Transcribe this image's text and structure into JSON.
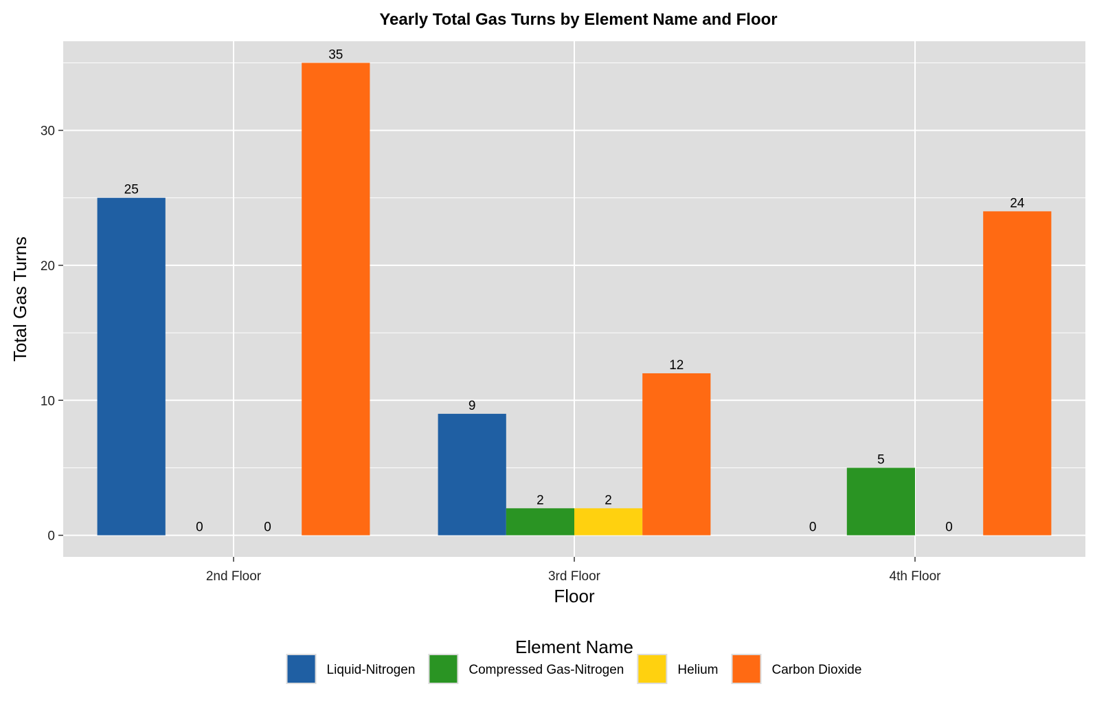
{
  "chart_data": {
    "type": "bar",
    "title": "Yearly Total Gas Turns by Element Name and Floor",
    "xlabel": "Floor",
    "ylabel": "Total Gas Turns",
    "categories": [
      "2nd Floor",
      "3rd Floor",
      "4th Floor"
    ],
    "series": [
      {
        "name": "Liquid-Nitrogen",
        "color": "#1f5fa3",
        "values": [
          25,
          9,
          0
        ]
      },
      {
        "name": "Compressed Gas-Nitrogen",
        "color": "#2a9423",
        "values": [
          0,
          2,
          5
        ]
      },
      {
        "name": "Helium",
        "color": "#ffd10f",
        "values": [
          0,
          2,
          0
        ]
      },
      {
        "name": "Carbon Dioxide",
        "color": "#ff6a13",
        "values": [
          35,
          12,
          24
        ]
      }
    ],
    "ylim": [
      -1.6,
      36.6
    ],
    "yticks": [
      0,
      10,
      20,
      30
    ],
    "grid": true,
    "legend": {
      "title": "Element Name",
      "position": "bottom"
    }
  }
}
